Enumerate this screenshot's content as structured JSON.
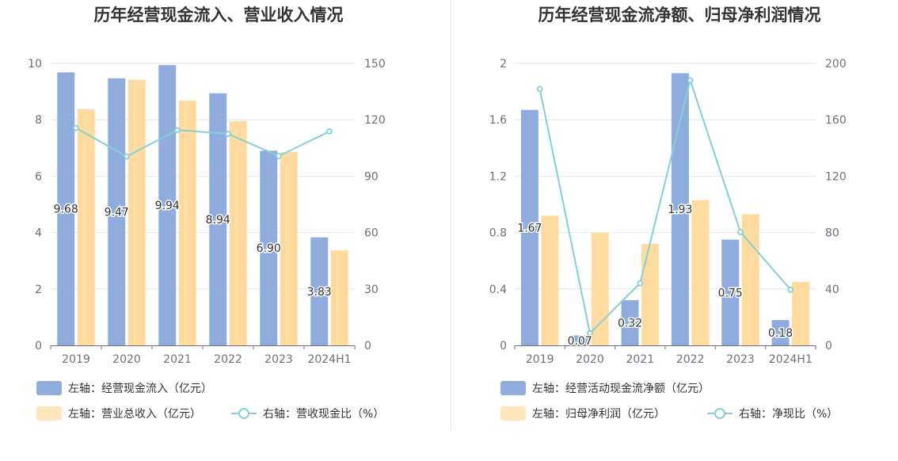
{
  "colors": {
    "bar_primary": "#8eadde",
    "bar_secondary": "#ffdb9f",
    "line": "#83d1d6",
    "grid": "#e0e6f1",
    "axis": "#6e7079",
    "divider": "#e8e8e8"
  },
  "chart_data": [
    {
      "type": "bar",
      "title": "历年经营现金流入、营业收入情况",
      "categories": [
        "2019",
        "2020",
        "2021",
        "2022",
        "2023",
        "2024H1"
      ],
      "left_axis": {
        "min": 0,
        "max": 10,
        "ticks": [
          "0",
          "2",
          "4",
          "6",
          "8",
          "10"
        ]
      },
      "right_axis": {
        "min": 0,
        "max": 150,
        "ticks": [
          "0",
          "30",
          "60",
          "90",
          "120",
          "150"
        ]
      },
      "series": [
        {
          "name": "左轴：经营现金流入（亿元）",
          "kind": "bar",
          "axis": "left",
          "values": [
            9.68,
            9.47,
            9.94,
            8.94,
            6.9,
            3.83
          ],
          "labels": [
            "9.68",
            "9.47",
            "9.94",
            "8.94",
            "6.90",
            "3.83"
          ]
        },
        {
          "name": "左轴：营业总收入（亿元）",
          "kind": "bar",
          "axis": "left",
          "values": [
            8.38,
            9.42,
            8.68,
            7.95,
            6.85,
            3.37
          ]
        },
        {
          "name": "右轴：营收现金比（%）",
          "kind": "line",
          "axis": "right",
          "values": [
            115.6,
            100.5,
            114.5,
            112.5,
            100.7,
            113.8
          ]
        }
      ],
      "grid": true,
      "legend_position": "bottom-left"
    },
    {
      "type": "bar",
      "title": "历年经营现金流净额、归母净利润情况",
      "categories": [
        "2019",
        "2020",
        "2021",
        "2022",
        "2023",
        "2024H1"
      ],
      "left_axis": {
        "min": 0,
        "max": 2,
        "ticks": [
          "0",
          "0.4",
          "0.8",
          "1.2",
          "1.6",
          "2"
        ]
      },
      "right_axis": {
        "min": 0,
        "max": 200,
        "ticks": [
          "0",
          "40",
          "80",
          "120",
          "160",
          "200"
        ]
      },
      "series": [
        {
          "name": "左轴：经营活动现金流净额（亿元）",
          "kind": "bar",
          "axis": "left",
          "values": [
            1.67,
            0.07,
            0.32,
            1.93,
            0.75,
            0.18
          ],
          "labels": [
            "1.67",
            "0.07",
            "0.32",
            "1.93",
            "0.75",
            "0.18"
          ]
        },
        {
          "name": "左轴：归母净利润（亿元）",
          "kind": "bar",
          "axis": "left",
          "values": [
            0.92,
            0.8,
            0.72,
            1.03,
            0.93,
            0.45
          ]
        },
        {
          "name": "右轴：净现比（%）",
          "kind": "line",
          "axis": "right",
          "values": [
            181.8,
            8.6,
            44.1,
            188.0,
            80.4,
            39.5
          ]
        }
      ],
      "grid": true,
      "legend_position": "bottom-left"
    }
  ]
}
